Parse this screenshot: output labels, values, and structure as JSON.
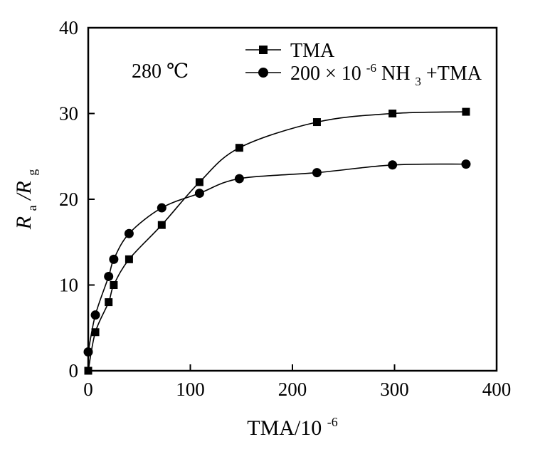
{
  "chart_data": {
    "type": "line",
    "xlabel": {
      "base": "TMA/10",
      "exp": "-6"
    },
    "ylabel": {
      "main": "R",
      "sub1": "a",
      "sep": "/R",
      "sub2": "g"
    },
    "annotation": "280 ℃",
    "xlim": [
      0,
      400
    ],
    "ylim": [
      0,
      40
    ],
    "x_ticks": [
      0,
      100,
      200,
      300,
      400
    ],
    "y_ticks": [
      0,
      10,
      20,
      30,
      40
    ],
    "x_tick_labels": [
      "0",
      "100",
      "200",
      "300",
      "400"
    ],
    "y_tick_labels": [
      "0",
      "10",
      "20",
      "30",
      "40"
    ],
    "grid": false,
    "legend_position": "top-right",
    "series": [
      {
        "name": "TMA",
        "marker": "square",
        "legend": {
          "text": "TMA"
        },
        "x": [
          0,
          7,
          20,
          25,
          40,
          72,
          109,
          148,
          224,
          298,
          370
        ],
        "y": [
          0,
          4.5,
          8,
          10,
          13,
          17,
          22,
          26,
          29,
          30,
          30.2
        ]
      },
      {
        "name": "200×10-6 NH3+TMA",
        "marker": "circle",
        "legend": {
          "pre": "200 × 10",
          "exp": "-6",
          "mid": " NH",
          "sub": "3",
          "post": "+TMA"
        },
        "x": [
          0,
          7,
          20,
          25,
          40,
          72,
          109,
          148,
          224,
          298,
          370
        ],
        "y": [
          2.2,
          6.5,
          11,
          13,
          16,
          19,
          20.7,
          22.4,
          23.1,
          24,
          24.1
        ]
      }
    ]
  }
}
